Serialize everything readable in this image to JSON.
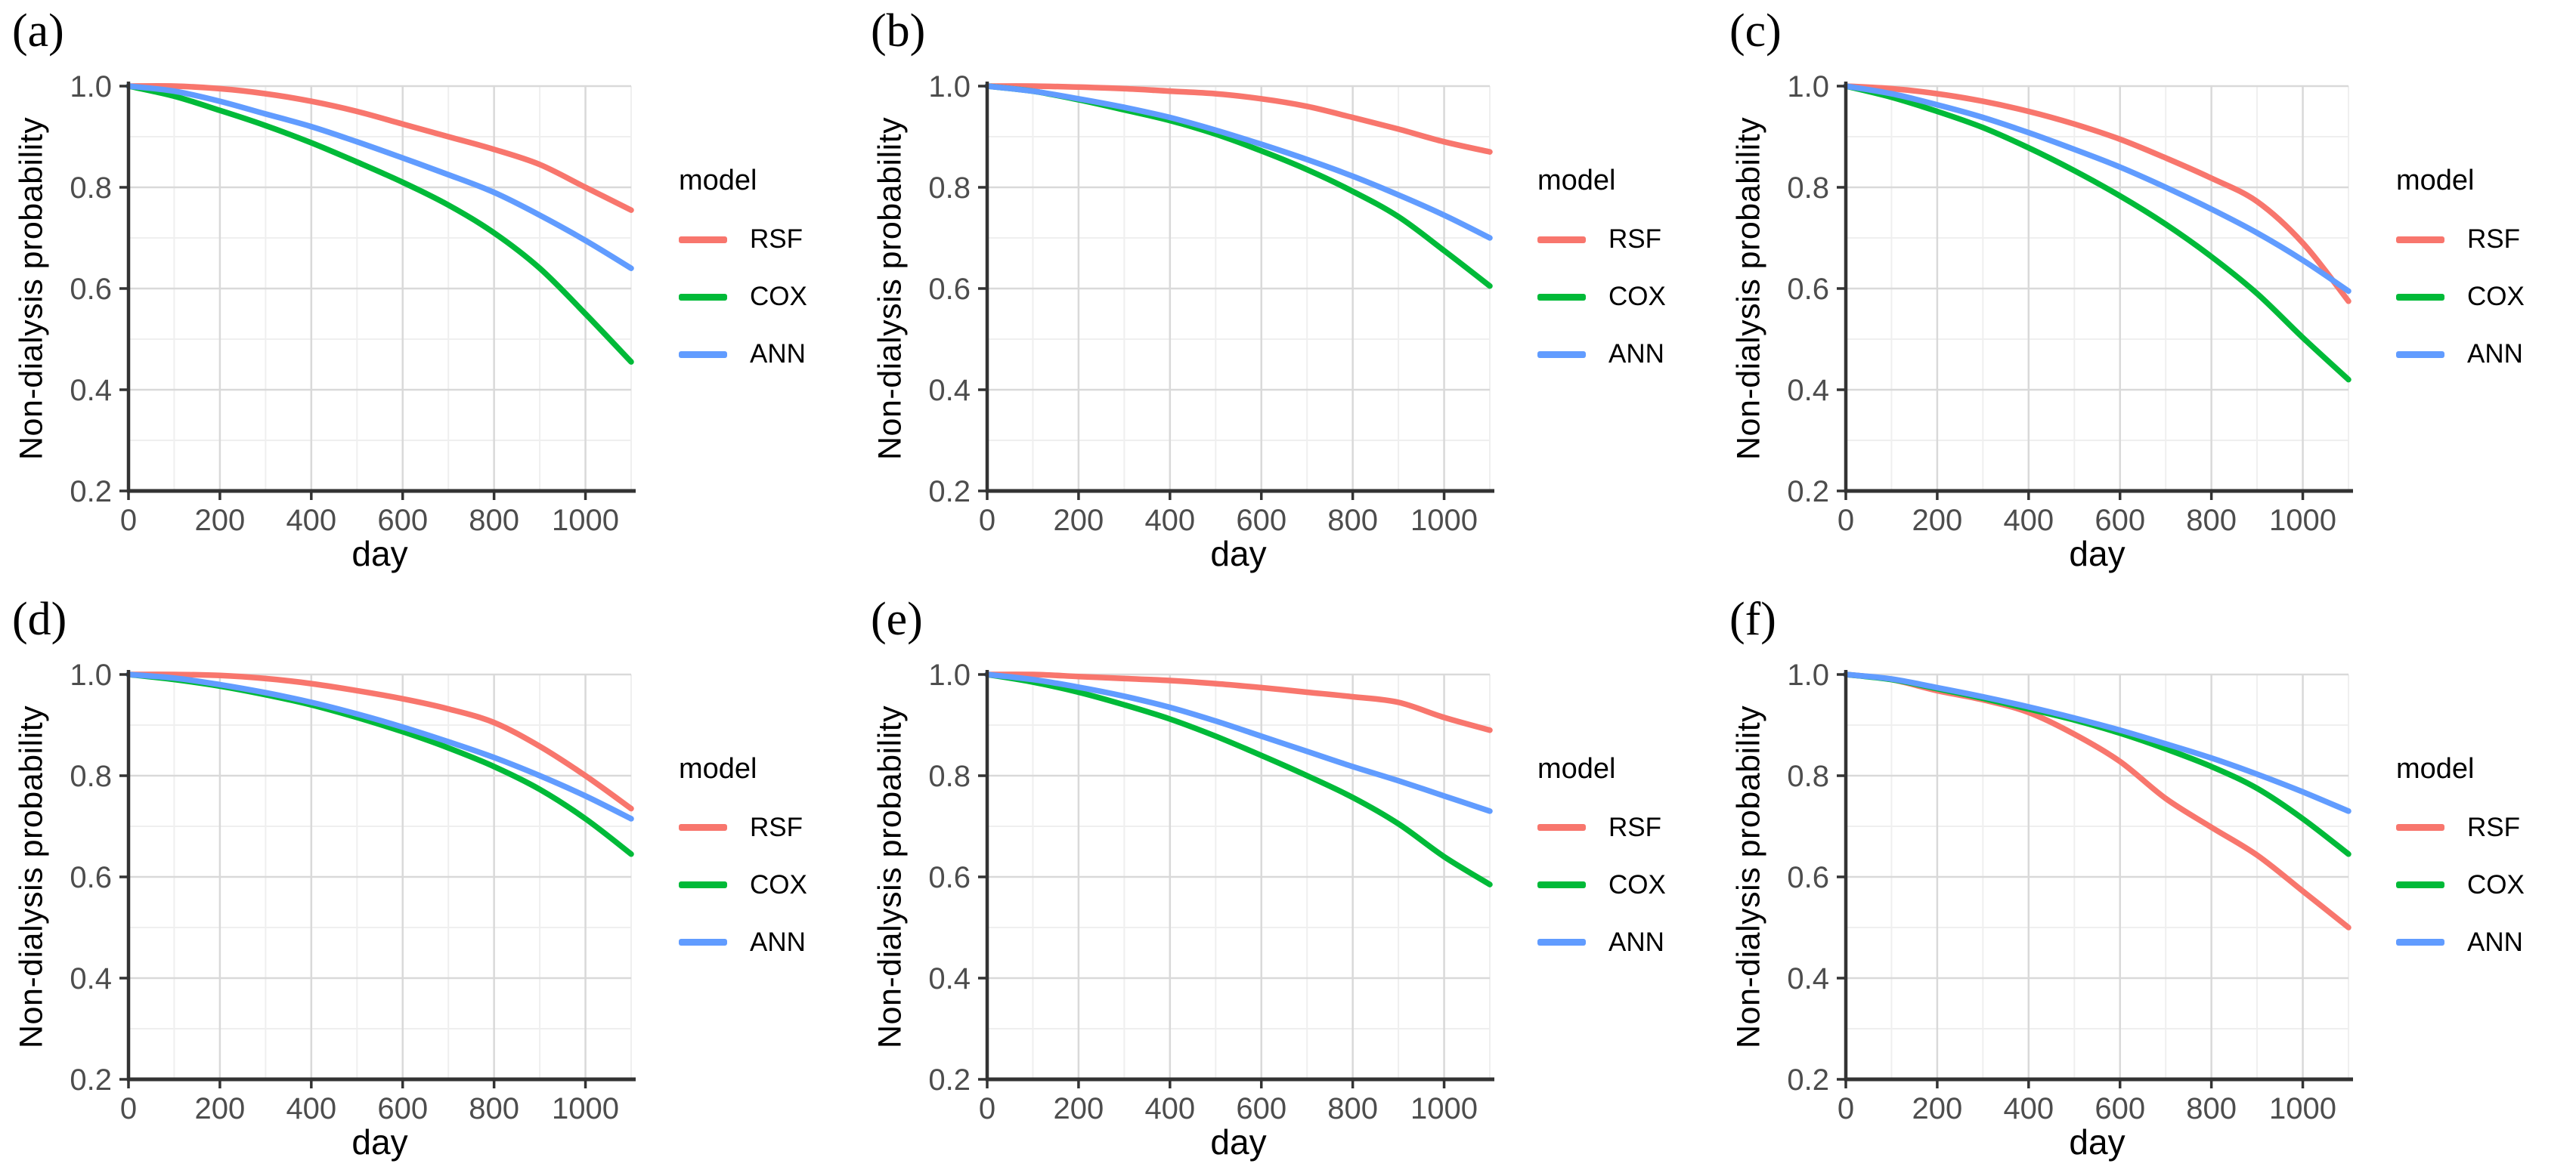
{
  "figure": {
    "background": "#ffffff",
    "axis_color": "#333333",
    "tick_label_color": "#4d4d4d",
    "grid_major_color": "#d9d9d9",
    "grid_minor_color": "#efefef"
  },
  "chart_data": [
    {
      "type": "line",
      "panel_label": "(a)",
      "xlabel": "day",
      "ylabel": "Non-dialysis probability",
      "legend_title": "model",
      "legend_position": "right",
      "grid": true,
      "xlim": [
        0,
        1100
      ],
      "ylim": [
        0.2,
        1.0
      ],
      "xticks": [
        0,
        200,
        400,
        600,
        800,
        1000
      ],
      "yticks": [
        0.2,
        0.4,
        0.6,
        0.8,
        1.0
      ],
      "x": [
        0,
        100,
        200,
        300,
        400,
        500,
        600,
        700,
        800,
        900,
        1000,
        1100
      ],
      "series": [
        {
          "name": "RSF",
          "color": "#F8766D",
          "values": [
            1.0,
            1.0,
            0.995,
            0.985,
            0.97,
            0.95,
            0.925,
            0.9,
            0.875,
            0.845,
            0.8,
            0.755
          ]
        },
        {
          "name": "COX",
          "color": "#00BA38",
          "values": [
            1.0,
            0.98,
            0.952,
            0.922,
            0.888,
            0.85,
            0.81,
            0.765,
            0.71,
            0.64,
            0.55,
            0.455
          ]
        },
        {
          "name": "ANN",
          "color": "#619CFF",
          "values": [
            1.0,
            0.99,
            0.97,
            0.945,
            0.92,
            0.89,
            0.858,
            0.825,
            0.79,
            0.745,
            0.695,
            0.64
          ]
        }
      ]
    },
    {
      "type": "line",
      "panel_label": "(b)",
      "xlabel": "day",
      "ylabel": "Non-dialysis probability",
      "legend_title": "model",
      "legend_position": "right",
      "grid": true,
      "xlim": [
        0,
        1100
      ],
      "ylim": [
        0.2,
        1.0
      ],
      "xticks": [
        0,
        200,
        400,
        600,
        800,
        1000
      ],
      "yticks": [
        0.2,
        0.4,
        0.6,
        0.8,
        1.0
      ],
      "x": [
        0,
        100,
        200,
        300,
        400,
        500,
        600,
        700,
        800,
        900,
        1000,
        1100
      ],
      "series": [
        {
          "name": "RSF",
          "color": "#F8766D",
          "values": [
            1.0,
            1.0,
            0.998,
            0.995,
            0.99,
            0.985,
            0.975,
            0.96,
            0.938,
            0.915,
            0.89,
            0.87
          ]
        },
        {
          "name": "COX",
          "color": "#00BA38",
          "values": [
            1.0,
            0.99,
            0.973,
            0.953,
            0.932,
            0.905,
            0.872,
            0.835,
            0.792,
            0.742,
            0.675,
            0.605
          ]
        },
        {
          "name": "ANN",
          "color": "#619CFF",
          "values": [
            1.0,
            0.99,
            0.975,
            0.958,
            0.938,
            0.913,
            0.885,
            0.855,
            0.822,
            0.785,
            0.745,
            0.7
          ]
        }
      ]
    },
    {
      "type": "line",
      "panel_label": "(c)",
      "xlabel": "day",
      "ylabel": "Non-dialysis probability",
      "legend_title": "model",
      "legend_position": "right",
      "grid": true,
      "xlim": [
        0,
        1100
      ],
      "ylim": [
        0.2,
        1.0
      ],
      "xticks": [
        0,
        200,
        400,
        600,
        800,
        1000
      ],
      "yticks": [
        0.2,
        0.4,
        0.6,
        0.8,
        1.0
      ],
      "x": [
        0,
        100,
        200,
        300,
        400,
        500,
        600,
        700,
        800,
        900,
        1000,
        1100
      ],
      "series": [
        {
          "name": "RSF",
          "color": "#F8766D",
          "values": [
            1.0,
            0.995,
            0.985,
            0.97,
            0.95,
            0.925,
            0.895,
            0.858,
            0.818,
            0.772,
            0.69,
            0.575
          ]
        },
        {
          "name": "COX",
          "color": "#00BA38",
          "values": [
            1.0,
            0.978,
            0.95,
            0.918,
            0.878,
            0.833,
            0.783,
            0.727,
            0.663,
            0.59,
            0.503,
            0.42
          ]
        },
        {
          "name": "ANN",
          "color": "#619CFF",
          "values": [
            1.0,
            0.985,
            0.963,
            0.938,
            0.908,
            0.875,
            0.84,
            0.8,
            0.757,
            0.71,
            0.656,
            0.595
          ]
        }
      ]
    },
    {
      "type": "line",
      "panel_label": "(d)",
      "xlabel": "day",
      "ylabel": "Non-dialysis probability",
      "legend_title": "model",
      "legend_position": "right",
      "grid": true,
      "xlim": [
        0,
        1100
      ],
      "ylim": [
        0.2,
        1.0
      ],
      "xticks": [
        0,
        200,
        400,
        600,
        800,
        1000
      ],
      "yticks": [
        0.2,
        0.4,
        0.6,
        0.8,
        1.0
      ],
      "x": [
        0,
        100,
        200,
        300,
        400,
        500,
        600,
        700,
        800,
        900,
        1000,
        1100
      ],
      "series": [
        {
          "name": "RSF",
          "color": "#F8766D",
          "values": [
            1.0,
            1.0,
            0.998,
            0.992,
            0.982,
            0.968,
            0.952,
            0.932,
            0.905,
            0.858,
            0.8,
            0.735
          ]
        },
        {
          "name": "COX",
          "color": "#00BA38",
          "values": [
            1.0,
            0.99,
            0.977,
            0.96,
            0.94,
            0.915,
            0.887,
            0.855,
            0.818,
            0.773,
            0.715,
            0.645
          ]
        },
        {
          "name": "ANN",
          "color": "#619CFF",
          "values": [
            1.0,
            0.993,
            0.98,
            0.964,
            0.945,
            0.922,
            0.896,
            0.867,
            0.836,
            0.8,
            0.76,
            0.715
          ]
        }
      ]
    },
    {
      "type": "line",
      "panel_label": "(e)",
      "xlabel": "day",
      "ylabel": "Non-dialysis probability",
      "legend_title": "model",
      "legend_position": "right",
      "grid": true,
      "xlim": [
        0,
        1100
      ],
      "ylim": [
        0.2,
        1.0
      ],
      "xticks": [
        0,
        200,
        400,
        600,
        800,
        1000
      ],
      "yticks": [
        0.2,
        0.4,
        0.6,
        0.8,
        1.0
      ],
      "x": [
        0,
        100,
        200,
        300,
        400,
        500,
        600,
        700,
        800,
        900,
        1000,
        1100
      ],
      "series": [
        {
          "name": "RSF",
          "color": "#F8766D",
          "values": [
            1.0,
            1.0,
            0.996,
            0.992,
            0.988,
            0.982,
            0.974,
            0.965,
            0.956,
            0.945,
            0.915,
            0.89
          ]
        },
        {
          "name": "COX",
          "color": "#00BA38",
          "values": [
            1.0,
            0.985,
            0.965,
            0.94,
            0.912,
            0.878,
            0.84,
            0.8,
            0.757,
            0.705,
            0.64,
            0.585
          ]
        },
        {
          "name": "ANN",
          "color": "#619CFF",
          "values": [
            1.0,
            0.99,
            0.975,
            0.957,
            0.935,
            0.908,
            0.878,
            0.848,
            0.818,
            0.79,
            0.76,
            0.73
          ]
        }
      ]
    },
    {
      "type": "line",
      "panel_label": "(f)",
      "xlabel": "day",
      "ylabel": "Non-dialysis probability",
      "legend_title": "model",
      "legend_position": "right",
      "grid": true,
      "xlim": [
        0,
        1100
      ],
      "ylim": [
        0.2,
        1.0
      ],
      "xticks": [
        0,
        200,
        400,
        600,
        800,
        1000
      ],
      "yticks": [
        0.2,
        0.4,
        0.6,
        0.8,
        1.0
      ],
      "x": [
        0,
        100,
        200,
        300,
        400,
        500,
        600,
        700,
        800,
        900,
        1000,
        1100
      ],
      "series": [
        {
          "name": "RSF",
          "color": "#F8766D",
          "values": [
            1.0,
            0.99,
            0.968,
            0.95,
            0.925,
            0.882,
            0.828,
            0.755,
            0.698,
            0.643,
            0.572,
            0.5
          ]
        },
        {
          "name": "COX",
          "color": "#00BA38",
          "values": [
            1.0,
            0.99,
            0.972,
            0.953,
            0.932,
            0.91,
            0.884,
            0.853,
            0.818,
            0.775,
            0.715,
            0.645
          ]
        },
        {
          "name": "ANN",
          "color": "#619CFF",
          "values": [
            1.0,
            0.991,
            0.974,
            0.956,
            0.936,
            0.914,
            0.89,
            0.863,
            0.835,
            0.803,
            0.768,
            0.73
          ]
        }
      ]
    }
  ]
}
